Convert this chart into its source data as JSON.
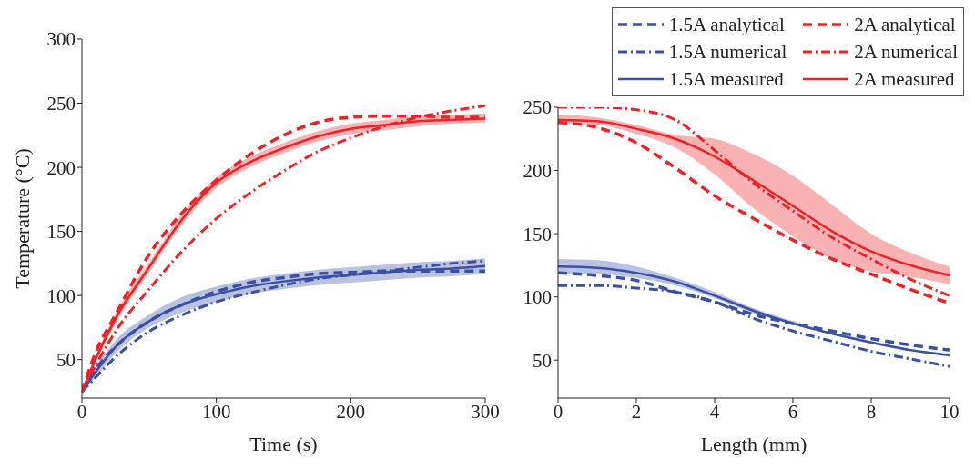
{
  "chart_data": [
    {
      "type": "line",
      "xlabel": "Time (s)",
      "ylabel": "Temperature (°C)",
      "x": [
        0,
        10,
        25,
        50,
        75,
        100,
        125,
        150,
        175,
        200,
        225,
        250,
        275,
        300
      ],
      "xlim": [
        0,
        300
      ],
      "xticks": [
        0,
        100,
        200,
        300
      ],
      "ylim": [
        20,
        300
      ],
      "yticks": [
        50,
        100,
        150,
        200,
        250,
        300
      ],
      "series": [
        {
          "color": "#3b4fa5",
          "line_style": "dashed",
          "values": [
            25,
            42,
            60,
            80,
            93,
            103,
            110,
            114,
            117,
            118,
            119,
            119,
            119,
            119
          ]
        },
        {
          "color": "#3b4fa5",
          "line_style": "dashdot",
          "values": [
            25,
            36,
            52,
            72,
            85,
            95,
            102,
            108,
            113,
            116,
            119,
            122,
            125,
            127
          ]
        },
        {
          "color": "#3b4fa5",
          "line_style": "solid",
          "values": [
            25,
            40,
            60,
            80,
            93,
            101,
            107,
            111,
            114,
            116,
            118,
            120,
            121,
            123
          ],
          "lower": [
            24,
            36,
            55,
            75,
            87,
            95,
            101,
            105,
            108,
            110,
            112,
            114,
            115,
            117
          ],
          "upper": [
            26,
            44,
            65,
            85,
            99,
            107,
            113,
            117,
            120,
            122,
            124,
            126,
            127,
            129
          ]
        },
        {
          "color": "#ec2227",
          "line_style": "dashed",
          "values": [
            25,
            55,
            85,
            132,
            165,
            190,
            210,
            225,
            235,
            239,
            240,
            240,
            239,
            239
          ]
        },
        {
          "color": "#ec2227",
          "line_style": "dashdot",
          "values": [
            25,
            45,
            72,
            105,
            135,
            160,
            180,
            197,
            212,
            223,
            232,
            239,
            244,
            248
          ]
        },
        {
          "color": "#ec2227",
          "line_style": "solid",
          "values": [
            25,
            50,
            82,
            122,
            160,
            188,
            204,
            215,
            224,
            230,
            233,
            236,
            237,
            238
          ],
          "lower": [
            24,
            47,
            78,
            118,
            156,
            184,
            200,
            211,
            220,
            226,
            229,
            232,
            234,
            235
          ],
          "upper": [
            26,
            53,
            86,
            126,
            164,
            192,
            208,
            219,
            228,
            234,
            237,
            240,
            241,
            242
          ]
        }
      ]
    },
    {
      "type": "line",
      "xlabel": "Length (mm)",
      "legend": "top right",
      "x": [
        0,
        1,
        2,
        3,
        4,
        5,
        6,
        7,
        8,
        9,
        10
      ],
      "xlim": [
        0,
        10
      ],
      "xticks": [
        0,
        2,
        4,
        6,
        8,
        10
      ],
      "ylim": [
        20,
        250
      ],
      "yticks": [
        50,
        100,
        150,
        200,
        250
      ],
      "series": [
        {
          "name": "1.5A analytical",
          "color": "#3b4fa5",
          "line_style": "dashed",
          "values": [
            119,
            117,
            113,
            104,
            96,
            86,
            79,
            73,
            67,
            62,
            58
          ]
        },
        {
          "name": "1.5A numerical",
          "color": "#3b4fa5",
          "line_style": "dashdot",
          "values": [
            109,
            109,
            107,
            104,
            96,
            83,
            73,
            65,
            57,
            51,
            45
          ]
        },
        {
          "name": "1.5A measured",
          "color": "#3b4fa5",
          "line_style": "solid",
          "values": [
            124,
            123,
            119,
            112,
            101,
            89,
            79,
            71,
            64,
            58,
            54
          ],
          "lower": [
            118,
            118,
            115,
            109,
            99,
            87,
            78,
            70,
            63,
            57,
            53
          ],
          "upper": [
            130,
            129,
            124,
            115,
            104,
            91,
            81,
            72,
            65,
            59,
            55
          ]
        },
        {
          "name": "2A analytical",
          "color": "#ec2227",
          "line_style": "dashed",
          "values": [
            238,
            234,
            222,
            202,
            180,
            162,
            145,
            130,
            118,
            106,
            95
          ]
        },
        {
          "name": "2A numerical",
          "color": "#ec2227",
          "line_style": "dashdot",
          "values": [
            250,
            250,
            248,
            240,
            216,
            190,
            168,
            147,
            130,
            114,
            101
          ]
        },
        {
          "name": "2A measured",
          "color": "#ec2227",
          "line_style": "solid",
          "values": [
            240,
            239,
            233,
            225,
            211,
            192,
            172,
            152,
            136,
            125,
            117
          ],
          "lower": [
            237,
            236,
            229,
            218,
            197,
            170,
            148,
            130,
            120,
            116,
            110
          ],
          "upper": [
            244,
            242,
            236,
            228,
            225,
            213,
            196,
            173,
            150,
            135,
            124
          ]
        }
      ]
    }
  ]
}
